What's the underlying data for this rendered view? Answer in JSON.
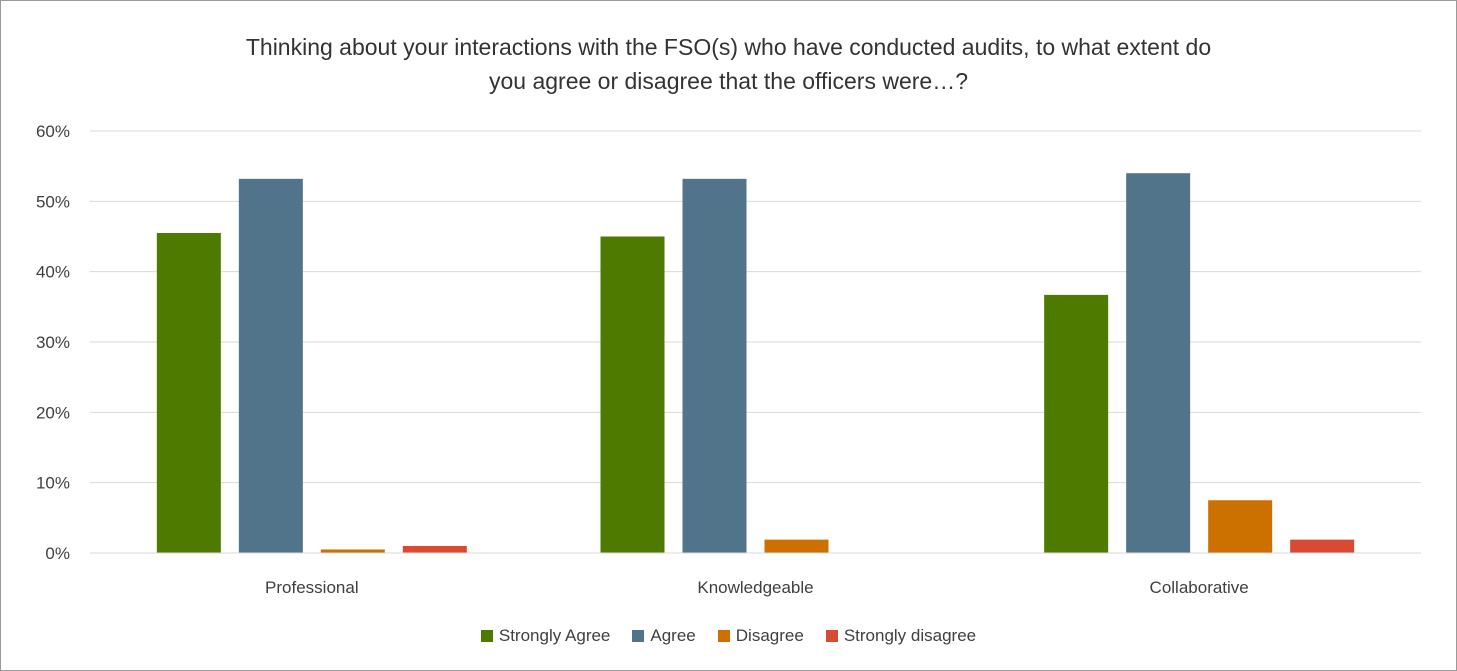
{
  "chart_data": {
    "type": "bar",
    "title": "Thinking about your interactions with the FSO(s) who have conducted audits, to what extent do you agree or disagree that the officers were…?",
    "title_lines": [
      "Thinking about your interactions with the FSO(s) who have conducted audits, to what extent do",
      "you agree or disagree that the officers were…?"
    ],
    "categories": [
      "Professional",
      "Knowledgeable",
      "Collaborative"
    ],
    "series": [
      {
        "name": "Strongly Agree",
        "color": "#4e7a00",
        "values": [
          45.5,
          45.0,
          36.7
        ]
      },
      {
        "name": "Agree",
        "color": "#51748a",
        "values": [
          53.2,
          53.2,
          54.0
        ]
      },
      {
        "name": "Disagree",
        "color": "#cc7000",
        "values": [
          0.5,
          1.9,
          7.5
        ]
      },
      {
        "name": "Strongly disagree",
        "color": "#d94a32",
        "values": [
          1.0,
          0,
          1.9
        ]
      }
    ],
    "ylim": [
      0,
      60
    ],
    "yticks": [
      0,
      10,
      20,
      30,
      40,
      50,
      60
    ],
    "ytick_labels": [
      "0%",
      "10%",
      "20%",
      "30%",
      "40%",
      "50%",
      "60%"
    ],
    "grid": true,
    "legend_position": "bottom",
    "xlabel": "",
    "ylabel": ""
  }
}
